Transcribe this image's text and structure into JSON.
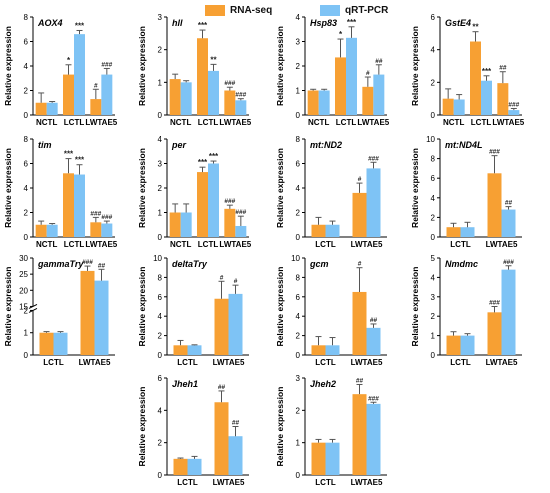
{
  "colors": {
    "rna_seq": "#F7A033",
    "qrt_pcr": "#7EC3F5",
    "axis": "#000000",
    "errorbar": "#555555"
  },
  "legend": [
    {
      "label": "RNA-seq",
      "color": "#F7A033"
    },
    {
      "label": "qRT-PCR",
      "color": "#7EC3F5"
    }
  ],
  "ylabel": "Relative expression",
  "chart_data": [
    {
      "type": "bar",
      "gene": "AOX4",
      "categories": [
        "NCTL",
        "LCTL",
        "LWTAE5"
      ],
      "ylim": [
        0,
        8
      ],
      "yticks": [
        0,
        2,
        4,
        6,
        8
      ],
      "series": [
        {
          "name": "RNA-seq",
          "values": [
            1.0,
            3.3,
            1.3
          ],
          "errors": [
            0.8,
            0.8,
            0.8
          ],
          "marks": [
            "",
            "*",
            "#"
          ]
        },
        {
          "name": "qRT-PCR",
          "values": [
            1.0,
            6.6,
            3.3
          ],
          "errors": [
            0.1,
            0.3,
            0.5
          ],
          "marks": [
            "",
            "***",
            "###"
          ]
        }
      ]
    },
    {
      "type": "bar",
      "gene": "hll",
      "categories": [
        "NCTL",
        "LCTL",
        "LWTAE5"
      ],
      "ylim": [
        0,
        3
      ],
      "yticks": [
        0,
        1,
        2,
        3
      ],
      "series": [
        {
          "name": "RNA-seq",
          "values": [
            1.1,
            2.35,
            0.75
          ],
          "errors": [
            0.15,
            0.25,
            0.1
          ],
          "marks": [
            "",
            "***",
            "###"
          ]
        },
        {
          "name": "qRT-PCR",
          "values": [
            1.0,
            1.35,
            0.45
          ],
          "errors": [
            0.05,
            0.2,
            0.05
          ],
          "marks": [
            "",
            "**",
            "###"
          ]
        }
      ]
    },
    {
      "type": "bar",
      "gene": "Hsp83",
      "categories": [
        "NCTL",
        "LCTL",
        "LWTAE5"
      ],
      "ylim": [
        0,
        4
      ],
      "yticks": [
        0,
        1,
        2,
        3,
        4
      ],
      "series": [
        {
          "name": "RNA-seq",
          "values": [
            1.0,
            2.35,
            1.15
          ],
          "errors": [
            0.05,
            0.75,
            0.4
          ],
          "marks": [
            "",
            "*",
            "#"
          ]
        },
        {
          "name": "qRT-PCR",
          "values": [
            1.0,
            3.15,
            1.65
          ],
          "errors": [
            0.05,
            0.45,
            0.4
          ],
          "marks": [
            "",
            "***",
            "##"
          ]
        }
      ]
    },
    {
      "type": "bar",
      "gene": "GstE4",
      "categories": [
        "NCTL",
        "LCTL",
        "LWTAE5"
      ],
      "ylim": [
        0,
        6
      ],
      "yticks": [
        0,
        2,
        4,
        6
      ],
      "series": [
        {
          "name": "RNA-seq",
          "values": [
            1.0,
            4.5,
            1.95
          ],
          "errors": [
            0.6,
            0.6,
            0.7
          ],
          "marks": [
            "",
            "**",
            "##"
          ]
        },
        {
          "name": "qRT-PCR",
          "values": [
            0.95,
            2.1,
            0.3
          ],
          "errors": [
            0.3,
            0.3,
            0.1
          ],
          "marks": [
            "",
            "***",
            "###"
          ]
        }
      ]
    },
    {
      "type": "bar",
      "gene": "tim",
      "categories": [
        "NCTL",
        "LCTL",
        "LWTAE5"
      ],
      "ylim": [
        0,
        8
      ],
      "yticks": [
        0,
        2,
        4,
        6,
        8
      ],
      "series": [
        {
          "name": "RNA-seq",
          "values": [
            1.0,
            5.2,
            1.2
          ],
          "errors": [
            0.3,
            1.2,
            0.4
          ],
          "marks": [
            "",
            "***",
            "###"
          ]
        },
        {
          "name": "qRT-PCR",
          "values": [
            1.0,
            5.1,
            1.1
          ],
          "errors": [
            0.1,
            0.8,
            0.2
          ],
          "marks": [
            "",
            "***",
            "###"
          ]
        }
      ]
    },
    {
      "type": "bar",
      "gene": "per",
      "categories": [
        "NCTL",
        "LCTL",
        "LWTAE5"
      ],
      "ylim": [
        0,
        4
      ],
      "yticks": [
        0,
        1,
        2,
        3,
        4
      ],
      "series": [
        {
          "name": "RNA-seq",
          "values": [
            1.0,
            2.65,
            1.15
          ],
          "errors": [
            0.35,
            0.2,
            0.15
          ],
          "marks": [
            "",
            "***",
            "###"
          ]
        },
        {
          "name": "qRT-PCR",
          "values": [
            1.0,
            3.0,
            0.45
          ],
          "errors": [
            0.35,
            0.1,
            0.4
          ],
          "marks": [
            "",
            "***",
            "###"
          ]
        }
      ]
    },
    {
      "type": "bar",
      "gene": "mt:ND2",
      "categories": [
        "LCTL",
        "LWTAE5"
      ],
      "ylim": [
        0,
        8
      ],
      "yticks": [
        0,
        2,
        4,
        6,
        8
      ],
      "series": [
        {
          "name": "RNA-seq",
          "values": [
            1.0,
            3.6
          ],
          "errors": [
            0.6,
            0.8
          ],
          "marks": [
            "",
            "#"
          ]
        },
        {
          "name": "qRT-PCR",
          "values": [
            1.0,
            5.6
          ],
          "errors": [
            0.3,
            0.5
          ],
          "marks": [
            "",
            "###"
          ]
        }
      ]
    },
    {
      "type": "bar",
      "gene": "mt:ND4L",
      "categories": [
        "LCTL",
        "LWTAE5"
      ],
      "ylim": [
        0,
        10
      ],
      "yticks": [
        0,
        2,
        4,
        6,
        8,
        10
      ],
      "series": [
        {
          "name": "RNA-seq",
          "values": [
            1.0,
            6.5
          ],
          "errors": [
            0.4,
            1.8
          ],
          "marks": [
            "",
            "###"
          ]
        },
        {
          "name": "qRT-PCR",
          "values": [
            1.0,
            2.8
          ],
          "errors": [
            0.5,
            0.3
          ],
          "marks": [
            "",
            "##"
          ]
        }
      ]
    },
    {
      "type": "bar",
      "gene": "gammaTry",
      "categories": [
        "LCTL",
        "LWTAE5"
      ],
      "broken_axis": true,
      "ylim_low": [
        0,
        2
      ],
      "yticks_low": [
        0,
        1,
        2
      ],
      "ylim_high": [
        15,
        30
      ],
      "yticks_high": [
        15,
        20,
        25,
        30
      ],
      "series": [
        {
          "name": "RNA-seq",
          "values": [
            1.0,
            26.0
          ],
          "errors": [
            0.05,
            1.5
          ],
          "marks": [
            "",
            "###"
          ]
        },
        {
          "name": "qRT-PCR",
          "values": [
            1.0,
            23.0
          ],
          "errors": [
            0.05,
            3.5
          ],
          "marks": [
            "",
            "##"
          ]
        }
      ]
    },
    {
      "type": "bar",
      "gene": "deltaTry",
      "categories": [
        "LCTL",
        "LWTAE5"
      ],
      "ylim": [
        0,
        10
      ],
      "yticks": [
        0,
        2,
        4,
        6,
        8,
        10
      ],
      "series": [
        {
          "name": "RNA-seq",
          "values": [
            1.0,
            5.8
          ],
          "errors": [
            0.5,
            1.8
          ],
          "marks": [
            "",
            "#"
          ]
        },
        {
          "name": "qRT-PCR",
          "values": [
            1.0,
            6.3
          ],
          "errors": [
            0.05,
            0.9
          ],
          "marks": [
            "",
            "#"
          ]
        }
      ]
    },
    {
      "type": "bar",
      "gene": "gcm",
      "categories": [
        "LCTL",
        "LWTAE5"
      ],
      "ylim": [
        0,
        10
      ],
      "yticks": [
        0,
        2,
        4,
        6,
        8,
        10
      ],
      "series": [
        {
          "name": "RNA-seq",
          "values": [
            1.0,
            6.5
          ],
          "errors": [
            0.9,
            2.5
          ],
          "marks": [
            "",
            "#"
          ]
        },
        {
          "name": "qRT-PCR",
          "values": [
            1.0,
            2.8
          ],
          "errors": [
            0.8,
            0.4
          ],
          "marks": [
            "",
            "##"
          ]
        }
      ]
    },
    {
      "type": "bar",
      "gene": "Nmdmc",
      "categories": [
        "LCTL",
        "LWTAE5"
      ],
      "ylim": [
        0,
        5
      ],
      "yticks": [
        0,
        1,
        2,
        3,
        4,
        5
      ],
      "series": [
        {
          "name": "RNA-seq",
          "values": [
            1.0,
            2.2
          ],
          "errors": [
            0.2,
            0.3
          ],
          "marks": [
            "",
            "###"
          ]
        },
        {
          "name": "qRT-PCR",
          "values": [
            1.0,
            4.4
          ],
          "errors": [
            0.1,
            0.2
          ],
          "marks": [
            "",
            "###"
          ]
        }
      ]
    },
    {
      "type": "bar",
      "gene": "Jheh1",
      "categories": [
        "LCTL",
        "LWTAE5"
      ],
      "ylim": [
        0,
        6
      ],
      "yticks": [
        0,
        2,
        4,
        6
      ],
      "series": [
        {
          "name": "RNA-seq",
          "values": [
            1.0,
            4.5
          ],
          "errors": [
            0.05,
            0.7
          ],
          "marks": [
            "",
            "##"
          ]
        },
        {
          "name": "qRT-PCR",
          "values": [
            1.0,
            2.4
          ],
          "errors": [
            0.15,
            0.6
          ],
          "marks": [
            "",
            "##"
          ]
        }
      ]
    },
    {
      "type": "bar",
      "gene": "Jheh2",
      "categories": [
        "LCTL",
        "LWTAE5"
      ],
      "ylim": [
        0,
        3
      ],
      "yticks": [
        0,
        1,
        2,
        3
      ],
      "series": [
        {
          "name": "RNA-seq",
          "values": [
            1.0,
            2.5
          ],
          "errors": [
            0.1,
            0.3
          ],
          "marks": [
            "",
            "##"
          ]
        },
        {
          "name": "qRT-PCR",
          "values": [
            1.0,
            2.2
          ],
          "errors": [
            0.1,
            0.05
          ],
          "marks": [
            "",
            "###"
          ]
        }
      ]
    }
  ]
}
